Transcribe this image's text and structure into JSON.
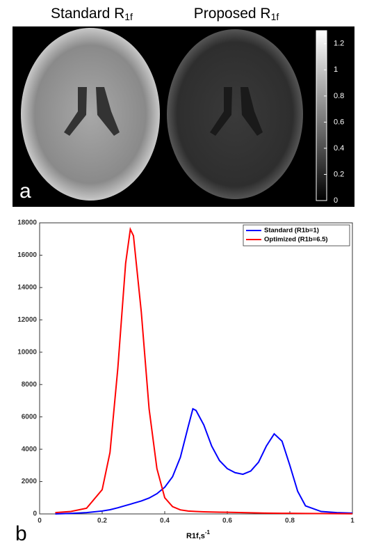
{
  "image_panel": {
    "left_title": "Standard R",
    "left_title_sub": "1f",
    "right_title": "Proposed R",
    "right_title_sub": "1f",
    "panel_label": "a",
    "colorbar_lim": [
      0,
      1.3
    ],
    "colorbar_ticks": [
      0,
      0.2,
      0.4,
      0.6,
      0.8,
      1,
      1.2
    ]
  },
  "chart_data": {
    "type": "line",
    "panel_label": "b",
    "xlabel": "R1f,s",
    "xlabel_sup": "-1",
    "x": [
      0.05,
      0.1,
      0.15,
      0.2,
      0.225,
      0.25,
      0.275,
      0.29,
      0.3,
      0.325,
      0.35,
      0.375,
      0.4,
      0.425,
      0.45,
      0.475,
      0.49,
      0.5,
      0.525,
      0.55,
      0.575,
      0.6,
      0.625,
      0.65,
      0.675,
      0.7,
      0.725,
      0.75,
      0.775,
      0.8,
      0.825,
      0.85,
      0.9,
      0.95,
      1.0
    ],
    "series": [
      {
        "name": "Standard (R1b=1)",
        "color": "#0000ff",
        "values": [
          0,
          30,
          80,
          180,
          260,
          380,
          520,
          600,
          660,
          800,
          980,
          1250,
          1650,
          2300,
          3500,
          5400,
          6500,
          6400,
          5500,
          4200,
          3300,
          2800,
          2550,
          2450,
          2650,
          3200,
          4200,
          4950,
          4500,
          3000,
          1400,
          500,
          150,
          80,
          50
        ]
      },
      {
        "name": "Optimized (R1b=6.5)",
        "color": "#ff0000",
        "values": [
          80,
          150,
          350,
          1500,
          3800,
          9000,
          15500,
          17600,
          17200,
          12500,
          6500,
          2800,
          1000,
          450,
          250,
          180,
          160,
          150,
          130,
          120,
          110,
          100,
          90,
          80,
          70,
          60,
          50,
          45,
          40,
          35,
          30,
          25,
          20,
          15,
          10
        ]
      }
    ],
    "xlim": [
      0,
      1
    ],
    "xticks": [
      0,
      0.2,
      0.4,
      0.6,
      0.8,
      1
    ],
    "ylim": [
      0,
      18000
    ],
    "yticks": [
      0,
      2000,
      4000,
      6000,
      8000,
      10000,
      12000,
      14000,
      16000,
      18000
    ],
    "legend": "top-right",
    "grid": false
  }
}
